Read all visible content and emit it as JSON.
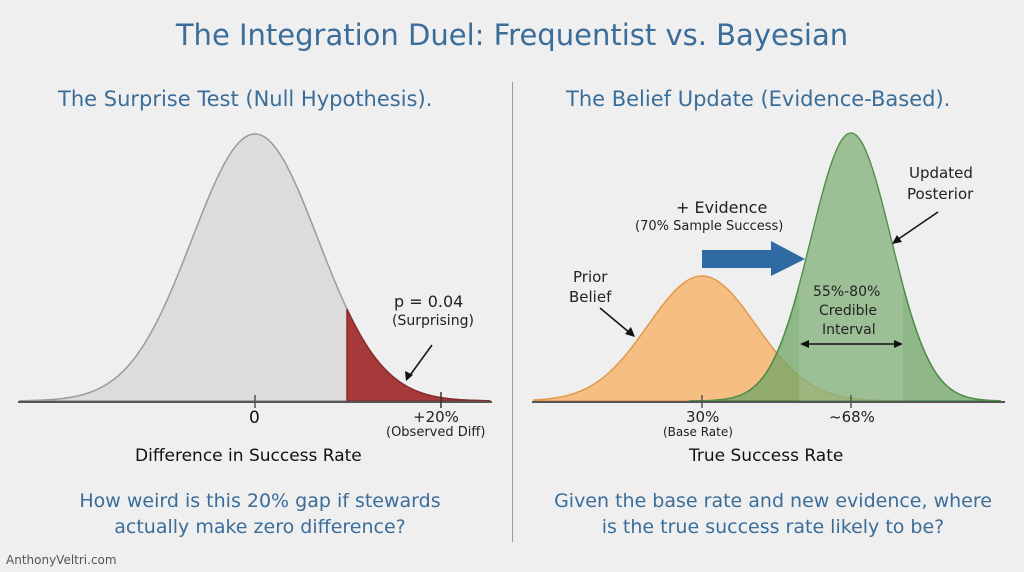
{
  "title": "The Integration Duel: Frequentist vs. Bayesian",
  "left": {
    "subtitle": "The Surprise Test (Null Hypothesis).",
    "p_label": "p = 0.04",
    "p_note": "(Surprising)",
    "tick_zero": "0",
    "tick_obs": "+20%",
    "tick_obs_note": "(Observed Diff)",
    "axis_label": "Difference in Success Rate",
    "question": "How weird is this 20% gap if stewards actually make zero difference?",
    "colors": {
      "curve_fill": "#dcdcdc",
      "tail_fill": "#a63a3a"
    }
  },
  "right": {
    "subtitle": "The Belief Update (Evidence-Based).",
    "evidence_label": "+ Evidence",
    "evidence_note": "(70% Sample Success)",
    "prior_label_1": "Prior",
    "prior_label_2": "Belief",
    "posterior_label_1": "Updated",
    "posterior_label_2": "Posterior",
    "interval_1": "55%-80%",
    "interval_2": "Credible",
    "interval_3": "Interval",
    "tick_prior": "30%",
    "tick_prior_note": "(Base Rate)",
    "tick_post": "~68%",
    "axis_label": "True Success Rate",
    "question": "Given the base rate and new evidence, where is the true success rate likely to be?",
    "colors": {
      "prior_fill": "#f7b878",
      "posterior_fill": "#6fa466",
      "arrow": "#2f6aa3"
    }
  },
  "credit": "AnthonyVeltri.com"
}
